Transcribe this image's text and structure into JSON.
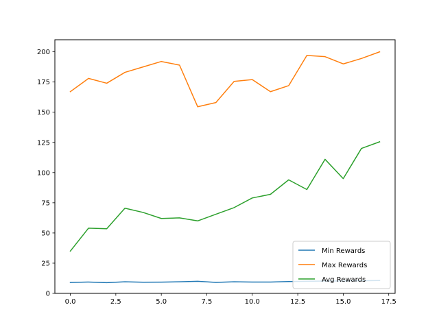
{
  "chart_data": {
    "type": "line",
    "title": "",
    "xlabel": "",
    "ylabel": "",
    "xlim": [
      -0.85,
      17.85
    ],
    "ylim": [
      0,
      210
    ],
    "xticks": [
      0.0,
      2.5,
      5.0,
      7.5,
      10.0,
      12.5,
      15.0,
      17.5
    ],
    "xtick_labels": [
      "0.0",
      "2.5",
      "5.0",
      "7.5",
      "10.0",
      "12.5",
      "15.0",
      "17.5"
    ],
    "yticks": [
      0,
      25,
      50,
      75,
      100,
      125,
      150,
      175,
      200
    ],
    "ytick_labels": [
      "0",
      "25",
      "50",
      "75",
      "100",
      "125",
      "150",
      "175",
      "200"
    ],
    "grid": false,
    "legend_position": "lower-right",
    "x": [
      0,
      1,
      2,
      3,
      4,
      5,
      6,
      7,
      8,
      9,
      10,
      11,
      12,
      13,
      14,
      15,
      16,
      17
    ],
    "series": [
      {
        "name": "Min Rewards",
        "color": "#1f77b4",
        "values": [
          9,
          9.4,
          8.9,
          9.6,
          9.2,
          9.3,
          9.6,
          10,
          9.1,
          9.6,
          9.4,
          9.4,
          9.8,
          10,
          10.2,
          10.2,
          10.4,
          10.6
        ]
      },
      {
        "name": "Max Rewards",
        "color": "#ff7f0e",
        "values": [
          167,
          178,
          174,
          183,
          187.5,
          192,
          189,
          154.5,
          158,
          175.5,
          177,
          167,
          172,
          197,
          196,
          190,
          194.5,
          200
        ]
      },
      {
        "name": "Avg Rewards",
        "color": "#2ca02c",
        "values": [
          35,
          54,
          53.5,
          70.5,
          67,
          62,
          62.5,
          60,
          65.5,
          71,
          79,
          82,
          94,
          86,
          111,
          95,
          120,
          125.5
        ]
      }
    ]
  }
}
